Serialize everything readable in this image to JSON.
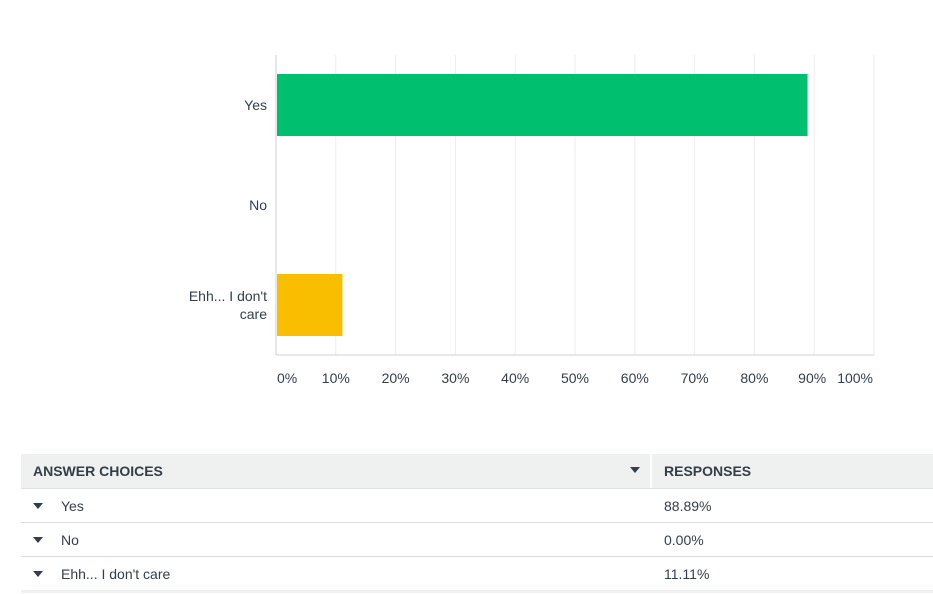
{
  "chart_data": {
    "type": "bar",
    "orientation": "horizontal",
    "categories": [
      "Yes",
      "No",
      "Ehh... I don't care"
    ],
    "category_lines": [
      [
        "Yes"
      ],
      [
        "No"
      ],
      [
        "Ehh... I don't",
        "care"
      ]
    ],
    "values": [
      88.89,
      0,
      11.11
    ],
    "colors": [
      "#00bf6f",
      "#a05fc8",
      "#f9be00"
    ],
    "xlim": [
      0,
      100
    ],
    "x_ticks": [
      0,
      10,
      20,
      30,
      40,
      50,
      60,
      70,
      80,
      90,
      100
    ],
    "x_tick_labels": [
      "0%",
      "10%",
      "20%",
      "30%",
      "40%",
      "50%",
      "60%",
      "70%",
      "80%",
      "90%",
      "100%"
    ],
    "grid": true
  },
  "table": {
    "headers": {
      "choices": "ANSWER CHOICES",
      "responses": "RESPONSES"
    },
    "rows": [
      {
        "choice": "Yes",
        "response": "88.89%"
      },
      {
        "choice": "No",
        "response": "0.00%"
      },
      {
        "choice": "Ehh... I don't care",
        "response": "11.11%"
      }
    ]
  },
  "icons": {
    "sort": "chevron-down-icon",
    "row": "caret-down-icon"
  }
}
